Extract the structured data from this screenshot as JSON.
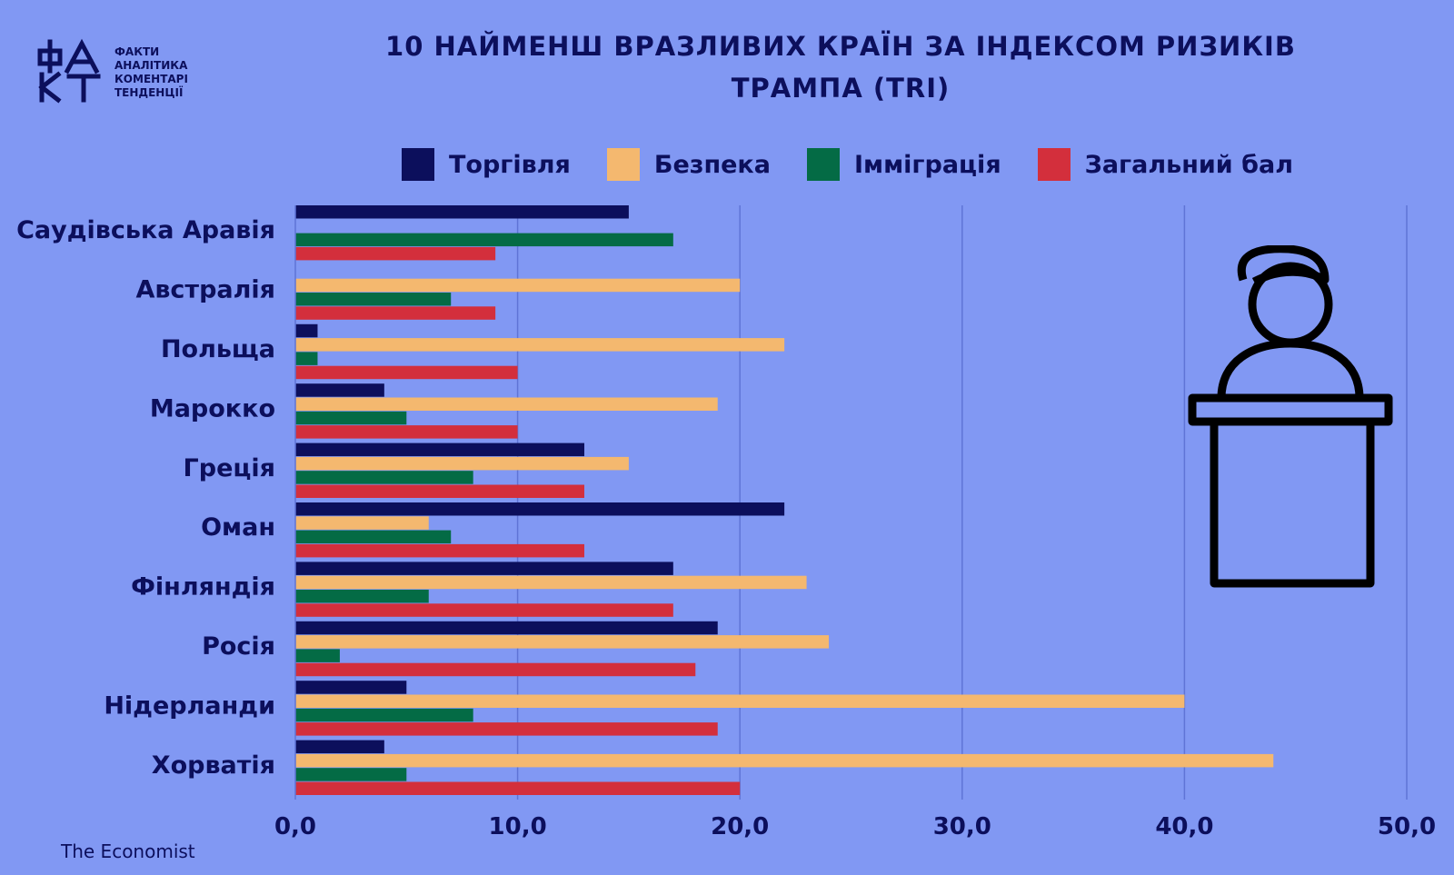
{
  "logo": {
    "words": [
      "ФАКТИ",
      "АНАЛІТИКА",
      "КОМЕНТАРІ",
      "ТЕНДЕНЦІЇ"
    ]
  },
  "title": {
    "line1": "10 НАЙМЕНШ ВРАЗЛИВИХ КРАЇН ЗА ІНДЕКСОМ РИЗИКІВ",
    "line2": "ТРАМПА (TRI)"
  },
  "source": "The Economist",
  "icons": {
    "podium": "speaker-at-podium-icon"
  },
  "chart_data": {
    "type": "bar",
    "orientation": "horizontal",
    "title": "10 НАЙМЕНШ ВРАЗЛИВИХ КРАЇН ЗА ІНДЕКСОМ РИЗИКІВ ТРАМПА (TRI)",
    "categories": [
      "Саудівська Аравія",
      "Австралія",
      "Польща",
      "Марокко",
      "Греція",
      "Оман",
      "Фінляндія",
      "Росія",
      "Нідерланди",
      "Хорватія"
    ],
    "series": [
      {
        "name": "Торгівля",
        "color": "#0c0f5c",
        "values": [
          15,
          0,
          1,
          4,
          13,
          22,
          17,
          19,
          5,
          4
        ]
      },
      {
        "name": "Безпека",
        "color": "#f4b86f",
        "values": [
          0,
          20,
          22,
          19,
          15,
          6,
          23,
          24,
          40,
          44
        ]
      },
      {
        "name": "Імміграція",
        "color": "#046b45",
        "values": [
          17,
          7,
          1,
          5,
          8,
          7,
          6,
          2,
          8,
          5
        ]
      },
      {
        "name": "Загальний бал",
        "color": "#d32f3c",
        "values": [
          9,
          9,
          10,
          10,
          13,
          13,
          17,
          18,
          19,
          20
        ]
      }
    ],
    "xlim": [
      0,
      50
    ],
    "xticks": [
      "0,0",
      "10,0",
      "20,0",
      "30,0",
      "40,0",
      "50,0"
    ],
    "grid": true,
    "legend": "top"
  }
}
